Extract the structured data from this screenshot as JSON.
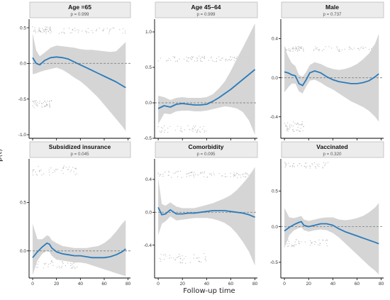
{
  "y_axis_label": "β(t)",
  "x_axis_label": "Follow-up time",
  "colors": {
    "line": "#2b7bba",
    "band": "#d3d3d3",
    "strip": "#ececec",
    "ref": "#8a8a8a",
    "points": "#a9a9a9"
  },
  "chart_data": [
    {
      "type": "line",
      "title": "Age =65",
      "subtitle": "p = 0.999",
      "xlim": [
        -3,
        82
      ],
      "ylim": [
        -1.05,
        0.62
      ],
      "yticks": [
        -1.0,
        -0.5,
        0.0,
        0.5
      ],
      "ytick_labels": [
        "-1.0",
        "-0.5",
        "0.0",
        "0.5"
      ],
      "xticks": [
        0,
        20,
        40,
        60,
        80
      ],
      "xtick_labels": [
        "0",
        "20",
        "40",
        "60",
        "80"
      ],
      "reference_line": 0,
      "x": [
        0,
        3,
        6,
        10,
        15,
        20,
        25,
        30,
        35,
        40,
        45,
        50,
        55,
        60,
        65,
        70,
        75,
        78
      ],
      "y": [
        0.08,
        0.0,
        -0.02,
        0.04,
        0.08,
        0.09,
        0.08,
        0.06,
        0.02,
        -0.02,
        -0.06,
        -0.1,
        -0.14,
        -0.18,
        -0.22,
        -0.26,
        -0.31,
        -0.34
      ],
      "lower": [
        -0.15,
        -0.14,
        -0.12,
        -0.1,
        -0.08,
        -0.06,
        -0.09,
        -0.14,
        -0.2,
        -0.25,
        -0.32,
        -0.4,
        -0.48,
        -0.58,
        -0.68,
        -0.78,
        -0.88,
        -0.95
      ],
      "upper": [
        0.42,
        0.18,
        0.1,
        0.15,
        0.22,
        0.25,
        0.24,
        0.23,
        0.22,
        0.2,
        0.19,
        0.19,
        0.18,
        0.17,
        0.16,
        0.17,
        0.25,
        0.3
      ],
      "point_bands": [
        [
          0,
          16,
          0.42,
          0.52
        ],
        [
          0,
          16,
          -0.62,
          -0.52
        ],
        [
          22,
          78,
          0.42,
          0.5
        ]
      ]
    },
    {
      "type": "line",
      "title": "Age 45–64",
      "subtitle": "p = 0.999",
      "xlim": [
        -3,
        82
      ],
      "ylim": [
        -0.5,
        1.18
      ],
      "yticks": [
        -0.5,
        0.0,
        0.5,
        1.0
      ],
      "ytick_labels": [
        "-0.5",
        "0.0",
        "0.5",
        "1.0"
      ],
      "xticks": [
        0,
        20,
        40,
        60,
        80
      ],
      "xtick_labels": [
        "0",
        "20",
        "40",
        "60",
        "80"
      ],
      "reference_line": 0,
      "x": [
        0,
        5,
        10,
        15,
        20,
        25,
        30,
        35,
        40,
        45,
        50,
        55,
        60,
        65,
        70,
        75,
        80
      ],
      "y": [
        -0.08,
        -0.04,
        -0.06,
        -0.02,
        -0.01,
        -0.02,
        -0.03,
        -0.03,
        -0.02,
        0.02,
        0.07,
        0.13,
        0.19,
        0.26,
        0.33,
        0.4,
        0.47
      ],
      "lower": [
        -0.3,
        -0.15,
        -0.16,
        -0.12,
        -0.11,
        -0.11,
        -0.12,
        -0.12,
        -0.11,
        -0.09,
        -0.07,
        -0.05,
        -0.06,
        -0.08,
        -0.13,
        -0.25,
        -0.45
      ],
      "upper": [
        0.1,
        0.08,
        0.04,
        0.07,
        0.08,
        0.07,
        0.07,
        0.07,
        0.08,
        0.12,
        0.2,
        0.3,
        0.45,
        0.62,
        0.78,
        0.95,
        1.12
      ],
      "point_bands": [
        [
          0,
          40,
          0.58,
          0.66
        ],
        [
          0,
          40,
          -0.42,
          -0.32
        ],
        [
          40,
          80,
          0.58,
          0.66
        ]
      ]
    },
    {
      "type": "line",
      "title": "Male",
      "subtitle": "p = 0.737",
      "xlim": [
        -3,
        82
      ],
      "ylim": [
        -0.62,
        0.6
      ],
      "yticks": [
        -0.4,
        0.0,
        0.4
      ],
      "ytick_labels": [
        "-0.4",
        "0.0",
        "0.4"
      ],
      "xticks": [
        0,
        20,
        40,
        60,
        80
      ],
      "xtick_labels": [
        "0",
        "20",
        "40",
        "60",
        "80"
      ],
      "reference_line": 0,
      "x": [
        0,
        3,
        6,
        9,
        12,
        15,
        18,
        21,
        25,
        30,
        35,
        40,
        45,
        50,
        55,
        60,
        65,
        70,
        75,
        78
      ],
      "y": [
        0.06,
        0.05,
        0.03,
        0.02,
        -0.06,
        -0.08,
        -0.02,
        0.05,
        0.07,
        0.05,
        0.01,
        -0.02,
        -0.04,
        -0.05,
        -0.06,
        -0.06,
        -0.05,
        -0.03,
        0.01,
        0.04
      ],
      "lower": [
        -0.15,
        -0.1,
        -0.06,
        -0.06,
        -0.14,
        -0.16,
        -0.09,
        -0.03,
        -0.02,
        -0.05,
        -0.09,
        -0.12,
        -0.16,
        -0.2,
        -0.24,
        -0.27,
        -0.3,
        -0.34,
        -0.4,
        -0.45
      ],
      "upper": [
        0.32,
        0.22,
        0.15,
        0.12,
        0.03,
        0.01,
        0.06,
        0.13,
        0.16,
        0.14,
        0.11,
        0.09,
        0.08,
        0.09,
        0.11,
        0.14,
        0.19,
        0.25,
        0.35,
        0.45
      ],
      "point_bands": [
        [
          0,
          16,
          0.27,
          0.32
        ],
        [
          0,
          16,
          -0.55,
          -0.45
        ],
        [
          24,
          78,
          0.27,
          0.32
        ]
      ]
    },
    {
      "type": "line",
      "title": "Subsidized insurance",
      "subtitle": "p = 0.045",
      "xlim": [
        -3,
        82
      ],
      "ylim": [
        -0.28,
        0.95
      ],
      "yticks": [
        0.0,
        0.5
      ],
      "ytick_labels": [
        "0.0",
        "0.5"
      ],
      "xticks": [
        0,
        20,
        40,
        60,
        80
      ],
      "xtick_labels": [
        "0",
        "20",
        "40",
        "60",
        "80"
      ],
      "reference_line": 0,
      "x": [
        0,
        4,
        8,
        12,
        14,
        16,
        20,
        25,
        30,
        35,
        40,
        45,
        50,
        55,
        60,
        65,
        70,
        75,
        78
      ],
      "y": [
        -0.07,
        -0.01,
        0.04,
        0.08,
        0.07,
        0.03,
        -0.01,
        -0.03,
        -0.04,
        -0.05,
        -0.05,
        -0.06,
        -0.07,
        -0.07,
        -0.07,
        -0.06,
        -0.04,
        -0.01,
        0.02
      ],
      "lower": [
        -0.25,
        -0.1,
        -0.03,
        0.0,
        -0.01,
        -0.05,
        -0.09,
        -0.1,
        -0.11,
        -0.12,
        -0.12,
        -0.13,
        -0.15,
        -0.17,
        -0.19,
        -0.21,
        -0.23,
        -0.25,
        -0.26
      ],
      "upper": [
        0.28,
        0.12,
        0.12,
        0.16,
        0.15,
        0.11,
        0.08,
        0.05,
        0.04,
        0.03,
        0.03,
        0.03,
        0.04,
        0.05,
        0.08,
        0.13,
        0.2,
        0.28,
        0.32
      ],
      "point_bands": [
        [
          0,
          38,
          0.78,
          0.88
        ],
        [
          0,
          38,
          -0.18,
          -0.1
        ]
      ]
    },
    {
      "type": "line",
      "title": "Comorbidity",
      "subtitle": "p = 0.095",
      "xlim": [
        -3,
        82
      ],
      "ylim": [
        -0.8,
        0.65
      ],
      "yticks": [
        -0.4,
        0.0,
        0.4
      ],
      "ytick_labels": [
        "-0.4",
        "0.0",
        "0.4"
      ],
      "xticks": [
        0,
        20,
        40,
        60,
        80
      ],
      "xtick_labels": [
        "0",
        "20",
        "40",
        "60",
        "80"
      ],
      "reference_line": 0,
      "x": [
        0,
        3,
        6,
        10,
        12,
        15,
        20,
        25,
        30,
        35,
        40,
        45,
        50,
        55,
        60,
        65,
        70,
        75,
        80
      ],
      "y": [
        0.06,
        -0.03,
        -0.02,
        0.03,
        0.01,
        -0.02,
        -0.02,
        -0.01,
        -0.01,
        0.0,
        0.01,
        0.02,
        0.02,
        0.02,
        0.01,
        0.0,
        -0.01,
        -0.03,
        -0.06
      ],
      "lower": [
        -0.28,
        -0.14,
        -0.11,
        -0.05,
        -0.07,
        -0.1,
        -0.09,
        -0.08,
        -0.07,
        -0.07,
        -0.07,
        -0.08,
        -0.1,
        -0.13,
        -0.18,
        -0.26,
        -0.36,
        -0.48,
        -0.65
      ],
      "upper": [
        0.42,
        0.1,
        0.08,
        0.12,
        0.1,
        0.07,
        0.05,
        0.05,
        0.05,
        0.07,
        0.09,
        0.11,
        0.14,
        0.17,
        0.21,
        0.27,
        0.35,
        0.44,
        0.55
      ],
      "point_bands": [
        [
          0,
          40,
          0.42,
          0.5
        ],
        [
          0,
          40,
          -0.62,
          -0.5
        ],
        [
          40,
          80,
          0.42,
          0.48
        ]
      ]
    },
    {
      "type": "line",
      "title": "Vaccinated",
      "subtitle": "p = 0.320",
      "xlim": [
        -3,
        82
      ],
      "ylim": [
        -0.72,
        0.95
      ],
      "yticks": [
        -0.5,
        0.0,
        0.5
      ],
      "ytick_labels": [
        "-0.5",
        "0.0",
        "0.5"
      ],
      "xticks": [
        0,
        20,
        40,
        60,
        80
      ],
      "xtick_labels": [
        "0",
        "20",
        "40",
        "60",
        "80"
      ],
      "reference_line": 0,
      "x": [
        0,
        4,
        8,
        12,
        14,
        16,
        20,
        25,
        30,
        35,
        40,
        45,
        50,
        55,
        60,
        65,
        70,
        75,
        78
      ],
      "y": [
        -0.06,
        -0.01,
        0.03,
        0.06,
        0.07,
        0.02,
        0.0,
        0.02,
        0.04,
        0.04,
        0.02,
        -0.03,
        -0.07,
        -0.1,
        -0.13,
        -0.16,
        -0.19,
        -0.22,
        -0.24
      ],
      "lower": [
        -0.3,
        -0.12,
        -0.05,
        -0.02,
        -0.01,
        -0.05,
        -0.07,
        -0.05,
        -0.04,
        -0.05,
        -0.09,
        -0.15,
        -0.23,
        -0.31,
        -0.39,
        -0.47,
        -0.55,
        -0.62,
        -0.67
      ],
      "upper": [
        0.26,
        0.13,
        0.12,
        0.14,
        0.15,
        0.1,
        0.08,
        0.1,
        0.12,
        0.13,
        0.13,
        0.1,
        0.09,
        0.1,
        0.12,
        0.15,
        0.2,
        0.27,
        0.33
      ],
      "point_bands": [
        [
          0,
          36,
          0.82,
          0.9
        ],
        [
          0,
          36,
          -0.28,
          -0.18
        ]
      ]
    }
  ]
}
